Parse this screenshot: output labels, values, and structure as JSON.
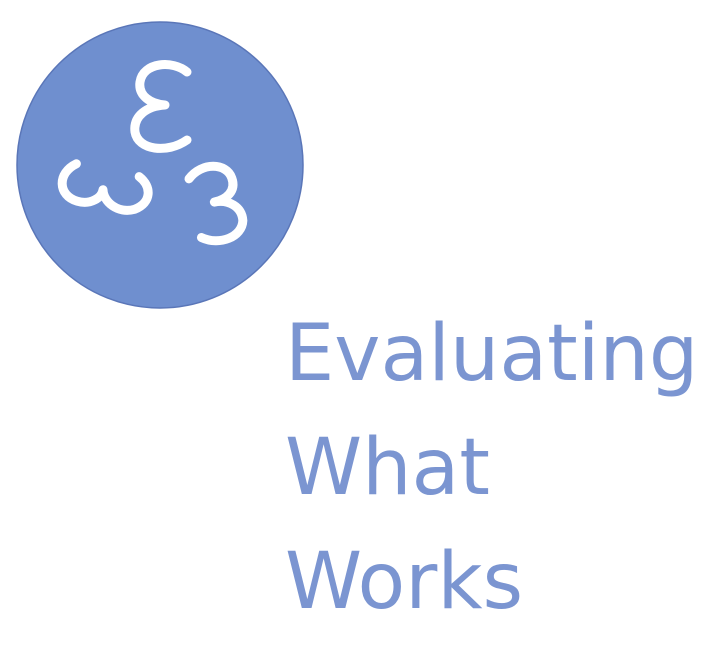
{
  "logo": {
    "name": "eww-logo",
    "circle_color": "#6f8fcf",
    "glyph_color": "#ffffff",
    "glyphs": [
      "ε",
      "ω",
      "ω"
    ]
  },
  "wordmark": {
    "line1": "Evaluating",
    "line2": "What",
    "line3": "Works",
    "color": "#7b95d1"
  }
}
